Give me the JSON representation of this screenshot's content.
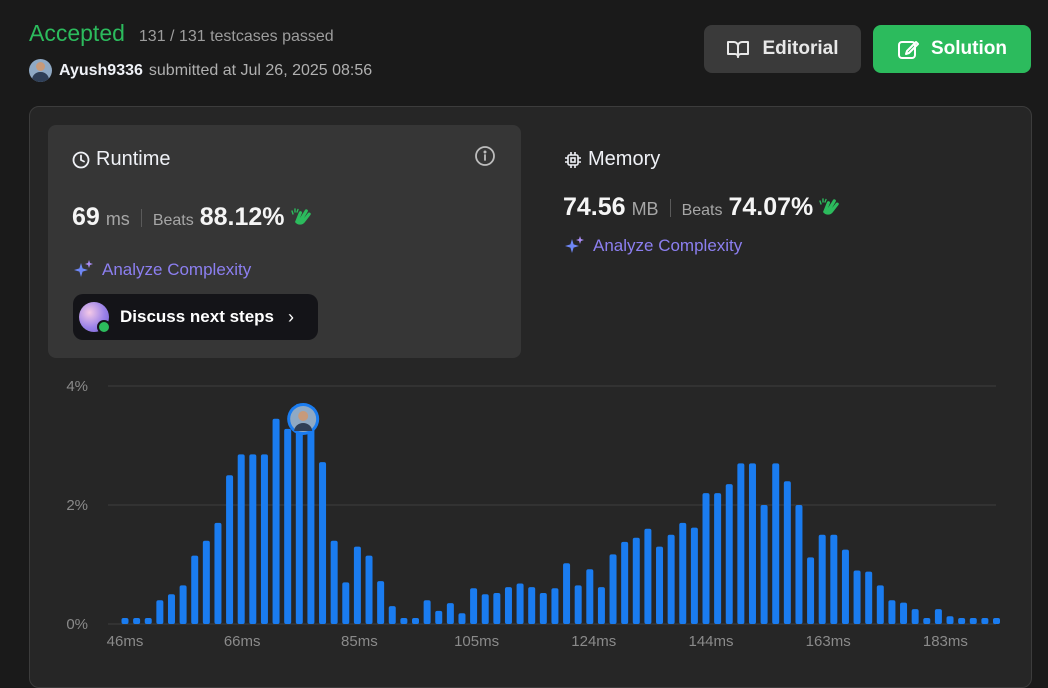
{
  "header": {
    "status": "Accepted",
    "testcases": "131 / 131 testcases passed",
    "username": "Ayush9336",
    "submitted_text": "submitted at Jul 26, 2025 08:56"
  },
  "buttons": {
    "editorial": "Editorial",
    "solution": "Solution"
  },
  "runtime": {
    "title": "Runtime",
    "value": "69",
    "unit": "ms",
    "beats_label": "Beats",
    "beats": "88.12%",
    "analyze": "Analyze Complexity",
    "discuss": "Discuss next steps"
  },
  "memory": {
    "title": "Memory",
    "value": "74.56",
    "unit": "MB",
    "beats_label": "Beats",
    "beats": "74.07%",
    "analyze": "Analyze Complexity"
  },
  "colors": {
    "accent_green": "#2cbb5d",
    "bar_blue": "#1a7cf0",
    "analyze_purple": "#8c7ff0"
  },
  "chart_data": {
    "type": "bar",
    "x_ticks": [
      "46ms",
      "66ms",
      "85ms",
      "105ms",
      "124ms",
      "144ms",
      "163ms",
      "183ms"
    ],
    "y_ticks": [
      "0%",
      "2%",
      "4%"
    ],
    "ylim": [
      0,
      4
    ],
    "grid": true,
    "user_runtime_ms": 69,
    "x_start_ms": 46,
    "x_step_ms": 1.5,
    "values": [
      0.1,
      0.1,
      0.1,
      0.4,
      0.5,
      0.65,
      1.15,
      1.4,
      1.7,
      2.5,
      2.85,
      2.85,
      2.85,
      3.45,
      3.28,
      3.7,
      3.38,
      2.72,
      1.4,
      0.7,
      1.3,
      1.15,
      0.72,
      0.3,
      0.1,
      0.1,
      0.4,
      0.22,
      0.35,
      0.18,
      0.6,
      0.5,
      0.52,
      0.62,
      0.68,
      0.62,
      0.52,
      0.6,
      1.02,
      0.65,
      0.92,
      0.62,
      1.17,
      1.38,
      1.45,
      1.6,
      1.3,
      1.5,
      1.7,
      1.62,
      2.2,
      2.2,
      2.35,
      2.7,
      2.7,
      2.0,
      2.7,
      2.4,
      2.0,
      1.12,
      1.5,
      1.5,
      1.25,
      0.9,
      0.88,
      0.65,
      0.4,
      0.36,
      0.25,
      0.1,
      0.25,
      0.13,
      0.1,
      0.1,
      0.1,
      0.1
    ]
  }
}
